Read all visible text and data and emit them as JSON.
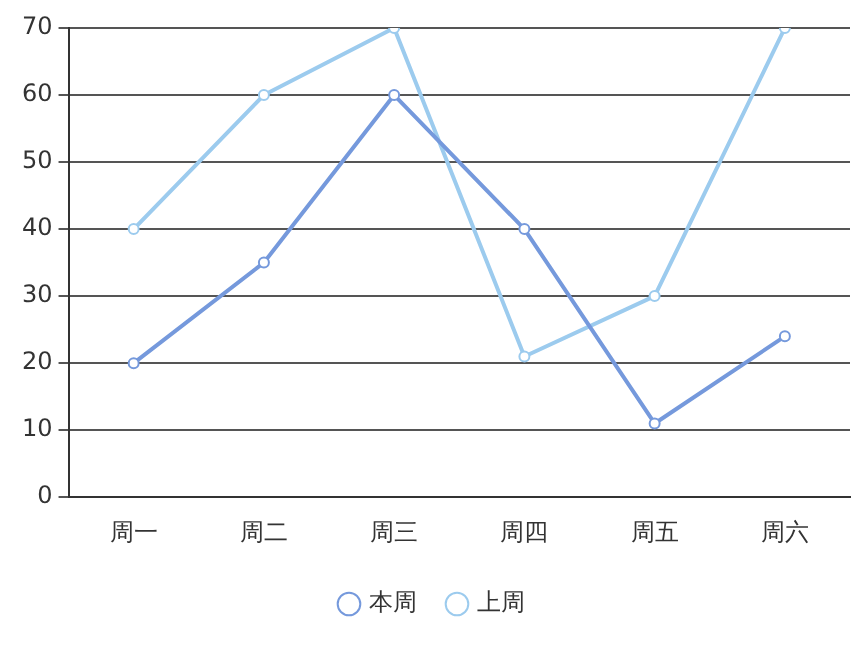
{
  "chart_data": {
    "type": "line",
    "categories": [
      "周一",
      "周二",
      "周三",
      "周四",
      "周五",
      "周六"
    ],
    "series": [
      {
        "name": "本周",
        "color": "#7599dc",
        "values": [
          20,
          35,
          60,
          40,
          11,
          24
        ]
      },
      {
        "name": "上周",
        "color": "#9ccbee",
        "values": [
          40,
          60,
          70,
          21,
          30,
          70
        ]
      }
    ],
    "ylim": [
      0,
      70
    ],
    "yticks": [
      0,
      10,
      20,
      30,
      40,
      50,
      60,
      70
    ],
    "grid": "y",
    "legend": "bottom",
    "marker": "circle",
    "line_style": "solid"
  }
}
